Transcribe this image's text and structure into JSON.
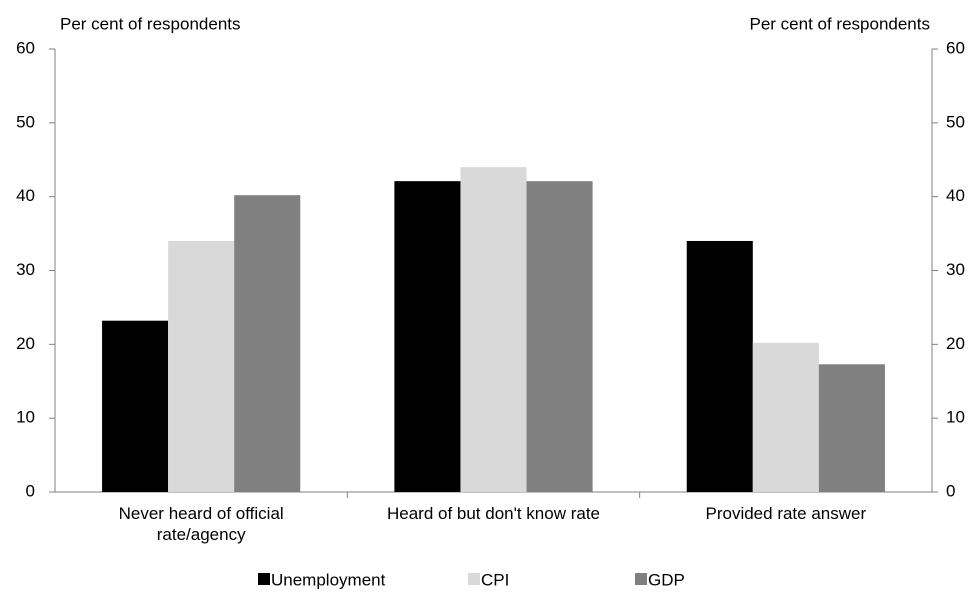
{
  "chart_data": {
    "type": "bar",
    "y_label": "Per cent of respondents",
    "y2_label": "Per cent of respondents",
    "categories": [
      "Never heard of official rate/agency",
      "Heard of but don't know rate",
      "Provided rate answer"
    ],
    "series": [
      {
        "name": "Unemployment",
        "color": "#000000",
        "values": [
          23.2,
          42.1,
          34
        ]
      },
      {
        "name": "CPI",
        "color": "#d9d9d9",
        "values": [
          34,
          44,
          20.2
        ]
      },
      {
        "name": "GDP",
        "color": "#808080",
        "values": [
          40.2,
          42.1,
          17.3
        ]
      }
    ],
    "ylim": [
      0,
      60
    ],
    "yticks": [
      0,
      10,
      20,
      30,
      40,
      50,
      60
    ],
    "y2lim": [
      0,
      60
    ],
    "y2ticks": [
      0,
      10,
      20,
      30,
      40,
      50,
      60
    ],
    "grid": false,
    "legend": "bottom"
  }
}
